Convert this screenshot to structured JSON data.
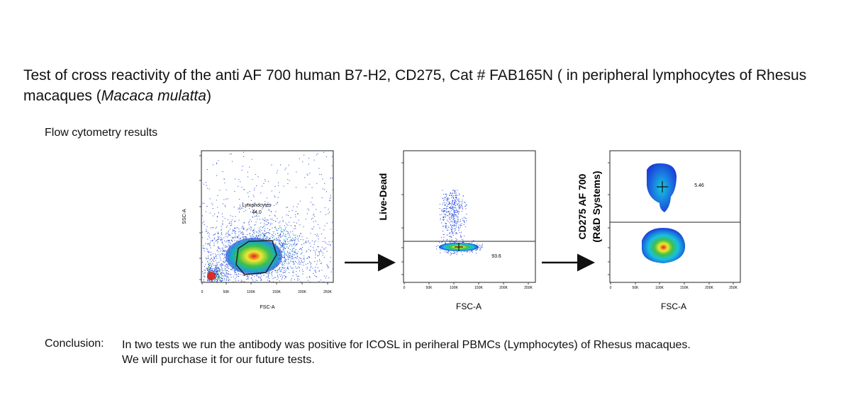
{
  "title": {
    "line1": "Test of cross reactivity of the anti AF 700 human B7-H2, CD275, Cat # FAB165N ( in peripheral lymphocytes of Rhesus",
    "line2_pre": "macaques (",
    "line2_italic": "Macaca mulatta",
    "line2_post": ")"
  },
  "subtitle": "Flow cytometry results",
  "plots": {
    "plot1": {
      "ylabel": "SSC-A",
      "xlabel": "FSC-A",
      "gate_name": "Lymphocytes",
      "gate_value": "44.0",
      "xticks": [
        "0",
        "50K",
        "100K",
        "150K",
        "200K",
        "250K"
      ]
    },
    "plot2": {
      "ylabel": "Live-Dead",
      "xlabel": "FSC-A",
      "gate_value": "93.6",
      "xticks": [
        "0",
        "50K",
        "100K",
        "150K",
        "200K",
        "250K"
      ]
    },
    "plot3": {
      "ylabel_line1": "CD275 AF 700",
      "ylabel_line2": "(R&D Systems)",
      "xlabel": "FSC-A",
      "gate_value": "5.46",
      "xticks": [
        "0",
        "50K",
        "100K",
        "150K",
        "200K",
        "250K"
      ]
    }
  },
  "conclusion": {
    "label": "Conclusion:",
    "line1": "In two tests we run the antibody was positive for ICOSL in periheral PBMCs (Lymphocytes) of Rhesus macaques.",
    "line2": "We will purchase it for our future tests."
  },
  "colors": {
    "dot_blue": "#1a3fd8",
    "density_green": "#3fbf4a",
    "density_yellow": "#f2e830",
    "density_red": "#e0221c",
    "frame": "#222222"
  }
}
